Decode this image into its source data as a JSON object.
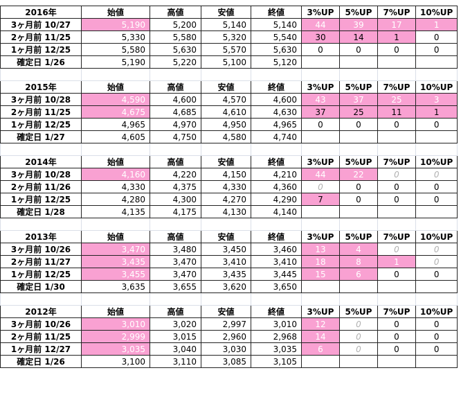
{
  "blocks": [
    {
      "header": [
        "2016年",
        "始値",
        "高値",
        "安値",
        "終値",
        "3%UP",
        "5%UP",
        "7%UP",
        "10%UP"
      ],
      "rows": [
        {
          "label": "3ヶ月前 10/27",
          "cells": [
            "5,190",
            "5,200",
            "5,140",
            "5,140",
            "44",
            "39",
            "17",
            "1"
          ]
        },
        {
          "label": "2ヶ月前 11/25",
          "cells": [
            "5,330",
            "5,580",
            "5,320",
            "5,540",
            "30",
            "14",
            "1",
            "0"
          ]
        },
        {
          "label": "1ヶ月前 12/25",
          "cells": [
            "5,580",
            "5,630",
            "5,570",
            "5,630",
            "0",
            "0",
            "0",
            "0"
          ]
        },
        {
          "label": "確定日 1/26",
          "cells": [
            "5,190",
            "5,220",
            "5,100",
            "5,120"
          ]
        }
      ]
    },
    {
      "header": [
        "2015年",
        "始値",
        "高値",
        "安値",
        "終値",
        "3%UP",
        "5%UP",
        "7%UP",
        "10%UP"
      ],
      "rows": [
        {
          "label": "3ヶ月前 10/28",
          "cells": [
            "4,590",
            "4,600",
            "4,570",
            "4,600",
            "43",
            "37",
            "25",
            "3"
          ]
        },
        {
          "label": "2ヶ月前 11/25",
          "cells": [
            "4,675",
            "4,685",
            "4,610",
            "4,630",
            "37",
            "25",
            "11",
            "1"
          ]
        },
        {
          "label": "1ヶ月前 12/25",
          "cells": [
            "4,965",
            "4,970",
            "4,950",
            "4,965",
            "0",
            "0",
            "0",
            "0"
          ]
        },
        {
          "label": "確定日 1/27",
          "cells": [
            "4,605",
            "4,750",
            "4,580",
            "4,740"
          ]
        }
      ]
    },
    {
      "header": [
        "2014年",
        "始値",
        "高値",
        "安値",
        "終値",
        "3%UP",
        "5%UP",
        "7%UP",
        "10%UP"
      ],
      "rows": [
        {
          "label": "3ヶ月前 10/28",
          "cells": [
            "4,160",
            "4,220",
            "4,150",
            "4,210",
            "44",
            "22",
            "0",
            "0"
          ]
        },
        {
          "label": "2ヶ月前 11/26",
          "cells": [
            "4,330",
            "4,375",
            "4,330",
            "4,360",
            "0",
            "0",
            "0",
            "0"
          ]
        },
        {
          "label": "1ヶ月前 12/25",
          "cells": [
            "4,280",
            "4,300",
            "4,270",
            "4,290",
            "7",
            "0",
            "0",
            "0"
          ]
        },
        {
          "label": "確定日 1/28",
          "cells": [
            "4,135",
            "4,175",
            "4,130",
            "4,140"
          ]
        }
      ]
    },
    {
      "header": [
        "2013年",
        "始値",
        "高値",
        "安値",
        "終値",
        "3%UP",
        "5%UP",
        "7%UP",
        "10%UP"
      ],
      "rows": [
        {
          "label": "3ヶ月前 10/26",
          "cells": [
            "3,470",
            "3,480",
            "3,450",
            "3,460",
            "13",
            "4",
            "0",
            "0"
          ]
        },
        {
          "label": "2ヶ月前 11/27",
          "cells": [
            "3,435",
            "3,470",
            "3,410",
            "3,410",
            "18",
            "8",
            "1",
            "0"
          ]
        },
        {
          "label": "1ヶ月前 12/25",
          "cells": [
            "3,455",
            "3,470",
            "3,435",
            "3,445",
            "15",
            "6",
            "0",
            "0"
          ]
        },
        {
          "label": "確定日 1/30",
          "cells": [
            "3,635",
            "3,655",
            "3,620",
            "3,650"
          ]
        }
      ]
    },
    {
      "header": [
        "2012年",
        "始値",
        "高値",
        "安値",
        "終値",
        "3%UP",
        "5%UP",
        "7%UP",
        "10%UP"
      ],
      "rows": [
        {
          "label": "3ヶ月前 10/26",
          "cells": [
            "3,010",
            "3,020",
            "2,997",
            "3,010",
            "12",
            "0",
            "0",
            "0"
          ]
        },
        {
          "label": "2ヶ月前 11/25",
          "cells": [
            "2,999",
            "3,015",
            "2,960",
            "2,968",
            "14",
            "0",
            "0",
            "0"
          ]
        },
        {
          "label": "1ヶ月前 12/27",
          "cells": [
            "3,035",
            "3,040",
            "3,030",
            "3,035",
            "6",
            "0",
            "0",
            "0"
          ]
        },
        {
          "label": "確定日 1/26",
          "cells": [
            "3,100",
            "3,110",
            "3,085",
            "3,105"
          ]
        }
      ]
    }
  ]
}
